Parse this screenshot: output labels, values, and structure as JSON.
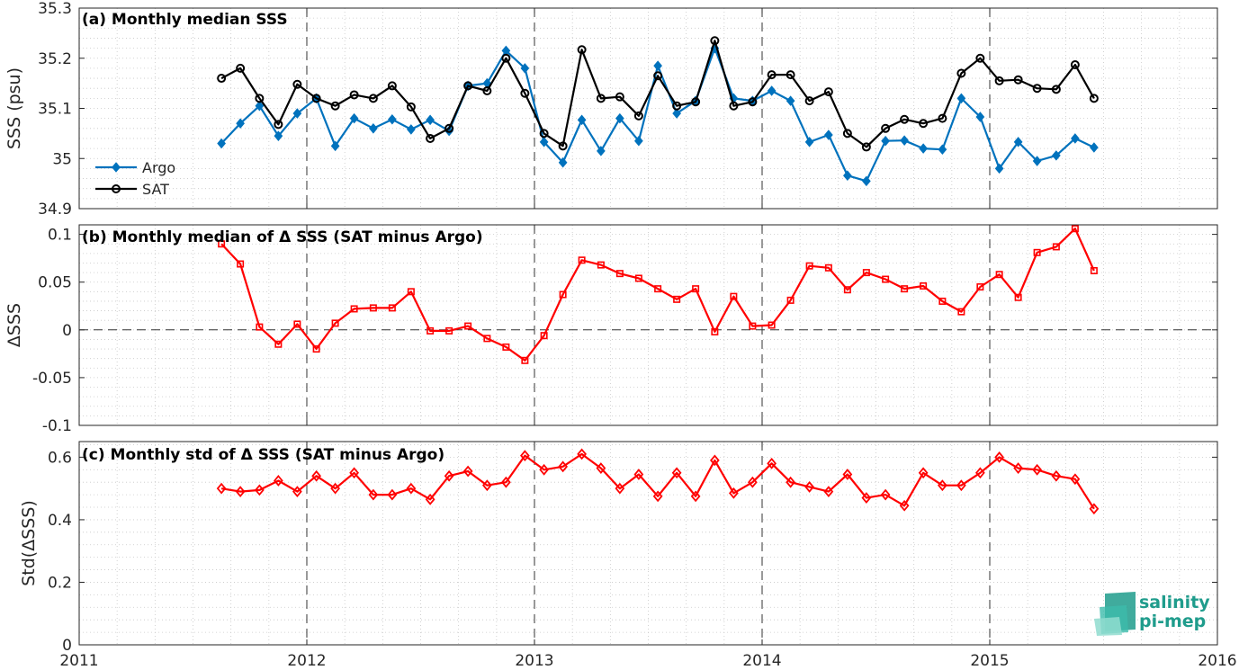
{
  "colors": {
    "argo": "#0072BD",
    "sat": "#000000",
    "delta": "#FF0000",
    "grid_dotted": "#c8c8c8",
    "axis": "#262626",
    "logo": "#1f9c8c"
  },
  "logo": {
    "line1": "salinity",
    "line2": "pi-mep"
  },
  "chart_data": [
    {
      "type": "line",
      "title": "(a) Monthly median SSS",
      "ylabel": "SSS (psu)",
      "xlabel": "",
      "xlim": [
        2011,
        2016
      ],
      "ylim": [
        34.9,
        35.3
      ],
      "xticks": [
        2011,
        2012,
        2013,
        2014,
        2015,
        2016
      ],
      "xtick_labels": [
        "2011",
        "2012",
        "2013",
        "2014",
        "2015",
        "2016"
      ],
      "yticks": [
        34.9,
        35.0,
        35.1,
        35.2,
        35.3
      ],
      "ytick_labels": [
        "34.9",
        "35",
        "35.1",
        "35.2",
        "35.3"
      ],
      "grid": "dotted minor grid, dashed yearly vertical lines",
      "legend": {
        "position": "bottom-left",
        "entries": [
          "Argo",
          "SAT"
        ]
      },
      "series": [
        {
          "name": "Argo",
          "marker": "filled-diamond",
          "x": [
            2011.625,
            2011.708,
            2011.792,
            2011.875,
            2011.958,
            2012.042,
            2012.125,
            2012.208,
            2012.292,
            2012.375,
            2012.458,
            2012.542,
            2012.625,
            2012.708,
            2012.792,
            2012.875,
            2012.958,
            2013.042,
            2013.125,
            2013.208,
            2013.292,
            2013.375,
            2013.458,
            2013.542,
            2013.625,
            2013.708,
            2013.792,
            2013.875,
            2013.958,
            2014.042,
            2014.125,
            2014.208,
            2014.292,
            2014.375,
            2014.458,
            2014.542,
            2014.625,
            2014.708,
            2014.792,
            2014.875,
            2014.958,
            2015.042,
            2015.125,
            2015.208,
            2015.292,
            2015.375,
            2015.458
          ],
          "y": [
            35.03,
            35.07,
            35.105,
            35.045,
            35.09,
            35.12,
            35.025,
            35.08,
            35.06,
            35.078,
            35.058,
            35.077,
            35.055,
            35.145,
            35.15,
            35.215,
            35.18,
            35.033,
            34.992,
            35.077,
            35.015,
            35.08,
            35.035,
            35.185,
            35.09,
            35.115,
            35.22,
            35.12,
            35.115,
            35.135,
            35.115,
            35.033,
            35.047,
            34.966,
            34.955,
            35.035,
            35.036,
            35.02,
            35.018,
            35.12,
            35.083,
            34.98,
            35.033,
            34.995,
            35.006,
            35.04,
            35.022
          ]
        },
        {
          "name": "SAT",
          "marker": "open-circle",
          "x": [
            2011.625,
            2011.708,
            2011.792,
            2011.875,
            2011.958,
            2012.042,
            2012.125,
            2012.208,
            2012.292,
            2012.375,
            2012.458,
            2012.542,
            2012.625,
            2012.708,
            2012.792,
            2012.875,
            2012.958,
            2013.042,
            2013.125,
            2013.208,
            2013.292,
            2013.375,
            2013.458,
            2013.542,
            2013.625,
            2013.708,
            2013.792,
            2013.875,
            2013.958,
            2014.042,
            2014.125,
            2014.208,
            2014.292,
            2014.375,
            2014.458,
            2014.542,
            2014.625,
            2014.708,
            2014.792,
            2014.875,
            2014.958,
            2015.042,
            2015.125,
            2015.208,
            2015.292,
            2015.375,
            2015.458
          ],
          "y": [
            35.16,
            35.18,
            35.12,
            35.068,
            35.148,
            35.12,
            35.105,
            35.127,
            35.12,
            35.145,
            35.103,
            35.04,
            35.06,
            35.145,
            35.135,
            35.2,
            35.13,
            35.05,
            35.025,
            35.217,
            35.12,
            35.123,
            35.085,
            35.165,
            35.105,
            35.113,
            35.235,
            35.105,
            35.113,
            35.167,
            35.167,
            35.115,
            35.133,
            35.05,
            35.023,
            35.06,
            35.078,
            35.07,
            35.08,
            35.17,
            35.2,
            35.155,
            35.157,
            35.14,
            35.138,
            35.187,
            35.12
          ]
        }
      ]
    },
    {
      "type": "line",
      "title": "(b) Monthly median of Δ SSS (SAT minus Argo)",
      "ylabel": "ΔSSS",
      "xlabel": "",
      "xlim": [
        2011,
        2016
      ],
      "ylim": [
        -0.1,
        0.11
      ],
      "xticks": [
        2011,
        2012,
        2013,
        2014,
        2015,
        2016
      ],
      "yticks": [
        -0.1,
        -0.05,
        0,
        0.05,
        0.1
      ],
      "ytick_labels": [
        "-0.1",
        "-0.05",
        "0",
        "0.05",
        "0.1"
      ],
      "zero_line": "dashed",
      "series": [
        {
          "name": "",
          "marker": "open-square",
          "x": [
            2011.625,
            2011.708,
            2011.792,
            2011.875,
            2011.958,
            2012.042,
            2012.125,
            2012.208,
            2012.292,
            2012.375,
            2012.458,
            2012.542,
            2012.625,
            2012.708,
            2012.792,
            2012.875,
            2012.958,
            2013.042,
            2013.125,
            2013.208,
            2013.292,
            2013.375,
            2013.458,
            2013.542,
            2013.625,
            2013.708,
            2013.792,
            2013.875,
            2013.958,
            2014.042,
            2014.125,
            2014.208,
            2014.292,
            2014.375,
            2014.458,
            2014.542,
            2014.625,
            2014.708,
            2014.792,
            2014.875,
            2014.958,
            2015.042,
            2015.125,
            2015.208,
            2015.292,
            2015.375,
            2015.458
          ],
          "y": [
            0.09,
            0.069,
            0.003,
            -0.015,
            0.006,
            -0.02,
            0.007,
            0.022,
            0.023,
            0.023,
            0.04,
            -0.001,
            -0.001,
            0.004,
            -0.009,
            -0.018,
            -0.032,
            -0.006,
            0.037,
            0.073,
            0.068,
            0.059,
            0.054,
            0.043,
            0.032,
            0.043,
            -0.002,
            0.035,
            0.004,
            0.005,
            0.031,
            0.067,
            0.065,
            0.042,
            0.06,
            0.053,
            0.043,
            0.046,
            0.03,
            0.019,
            0.045,
            0.058,
            0.034,
            0.081,
            0.087,
            0.106,
            0.062
          ]
        }
      ]
    },
    {
      "type": "line",
      "title": "(c) Monthly std of Δ SSS (SAT minus Argo)",
      "ylabel": "Std(ΔSSS)",
      "xlabel": "",
      "xlim": [
        2011,
        2016
      ],
      "ylim": [
        0,
        0.65
      ],
      "xticks": [
        2011,
        2012,
        2013,
        2014,
        2015,
        2016
      ],
      "yticks": [
        0,
        0.2,
        0.4,
        0.6
      ],
      "ytick_labels": [
        "0",
        "0.2",
        "0.4",
        "0.6"
      ],
      "series": [
        {
          "name": "",
          "marker": "open-diamond",
          "x": [
            2011.625,
            2011.708,
            2011.792,
            2011.875,
            2011.958,
            2012.042,
            2012.125,
            2012.208,
            2012.292,
            2012.375,
            2012.458,
            2012.542,
            2012.625,
            2012.708,
            2012.792,
            2012.875,
            2012.958,
            2013.042,
            2013.125,
            2013.208,
            2013.292,
            2013.375,
            2013.458,
            2013.542,
            2013.625,
            2013.708,
            2013.792,
            2013.875,
            2013.958,
            2014.042,
            2014.125,
            2014.208,
            2014.292,
            2014.375,
            2014.458,
            2014.542,
            2014.625,
            2014.708,
            2014.792,
            2014.875,
            2014.958,
            2015.042,
            2015.125,
            2015.208,
            2015.292,
            2015.375,
            2015.458
          ],
          "y": [
            0.5,
            0.49,
            0.495,
            0.525,
            0.49,
            0.54,
            0.5,
            0.55,
            0.48,
            0.48,
            0.5,
            0.465,
            0.54,
            0.555,
            0.51,
            0.52,
            0.605,
            0.56,
            0.57,
            0.61,
            0.565,
            0.5,
            0.545,
            0.475,
            0.55,
            0.475,
            0.59,
            0.485,
            0.52,
            0.58,
            0.52,
            0.505,
            0.49,
            0.545,
            0.47,
            0.48,
            0.445,
            0.55,
            0.51,
            0.51,
            0.55,
            0.6,
            0.565,
            0.56,
            0.54,
            0.53,
            0.435
          ]
        }
      ]
    }
  ]
}
